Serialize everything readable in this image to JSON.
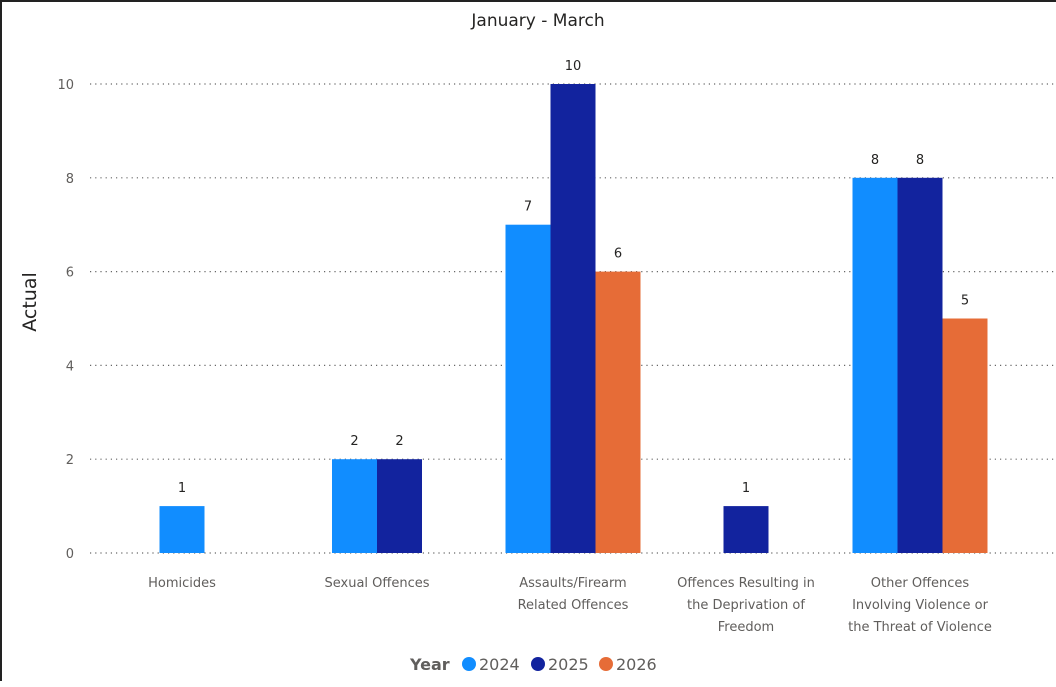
{
  "chart_data": {
    "type": "bar",
    "title": "January - March",
    "xlabel": "",
    "ylabel": "Actual",
    "ylim": [
      0,
      10
    ],
    "yticks": [
      0,
      2,
      4,
      6,
      8,
      10
    ],
    "grid": true,
    "legend_position": "bottom-center",
    "legend_title": "Year",
    "categories": [
      [
        "Homicides"
      ],
      [
        "Sexual Offences"
      ],
      [
        "Assaults/Firearm",
        "Related Offences"
      ],
      [
        "Offences Resulting in",
        "the Deprivation of",
        "Freedom"
      ],
      [
        "Other Offences",
        "Involving Violence or",
        "the Threat of Violence"
      ]
    ],
    "series": [
      {
        "name": "2024",
        "color": "#118DFF",
        "values": [
          1,
          2,
          7,
          null,
          8
        ]
      },
      {
        "name": "2025",
        "color": "#12239E",
        "values": [
          null,
          2,
          10,
          1,
          8
        ]
      },
      {
        "name": "2026",
        "color": "#E66C37",
        "values": [
          null,
          null,
          6,
          null,
          5
        ]
      }
    ]
  }
}
